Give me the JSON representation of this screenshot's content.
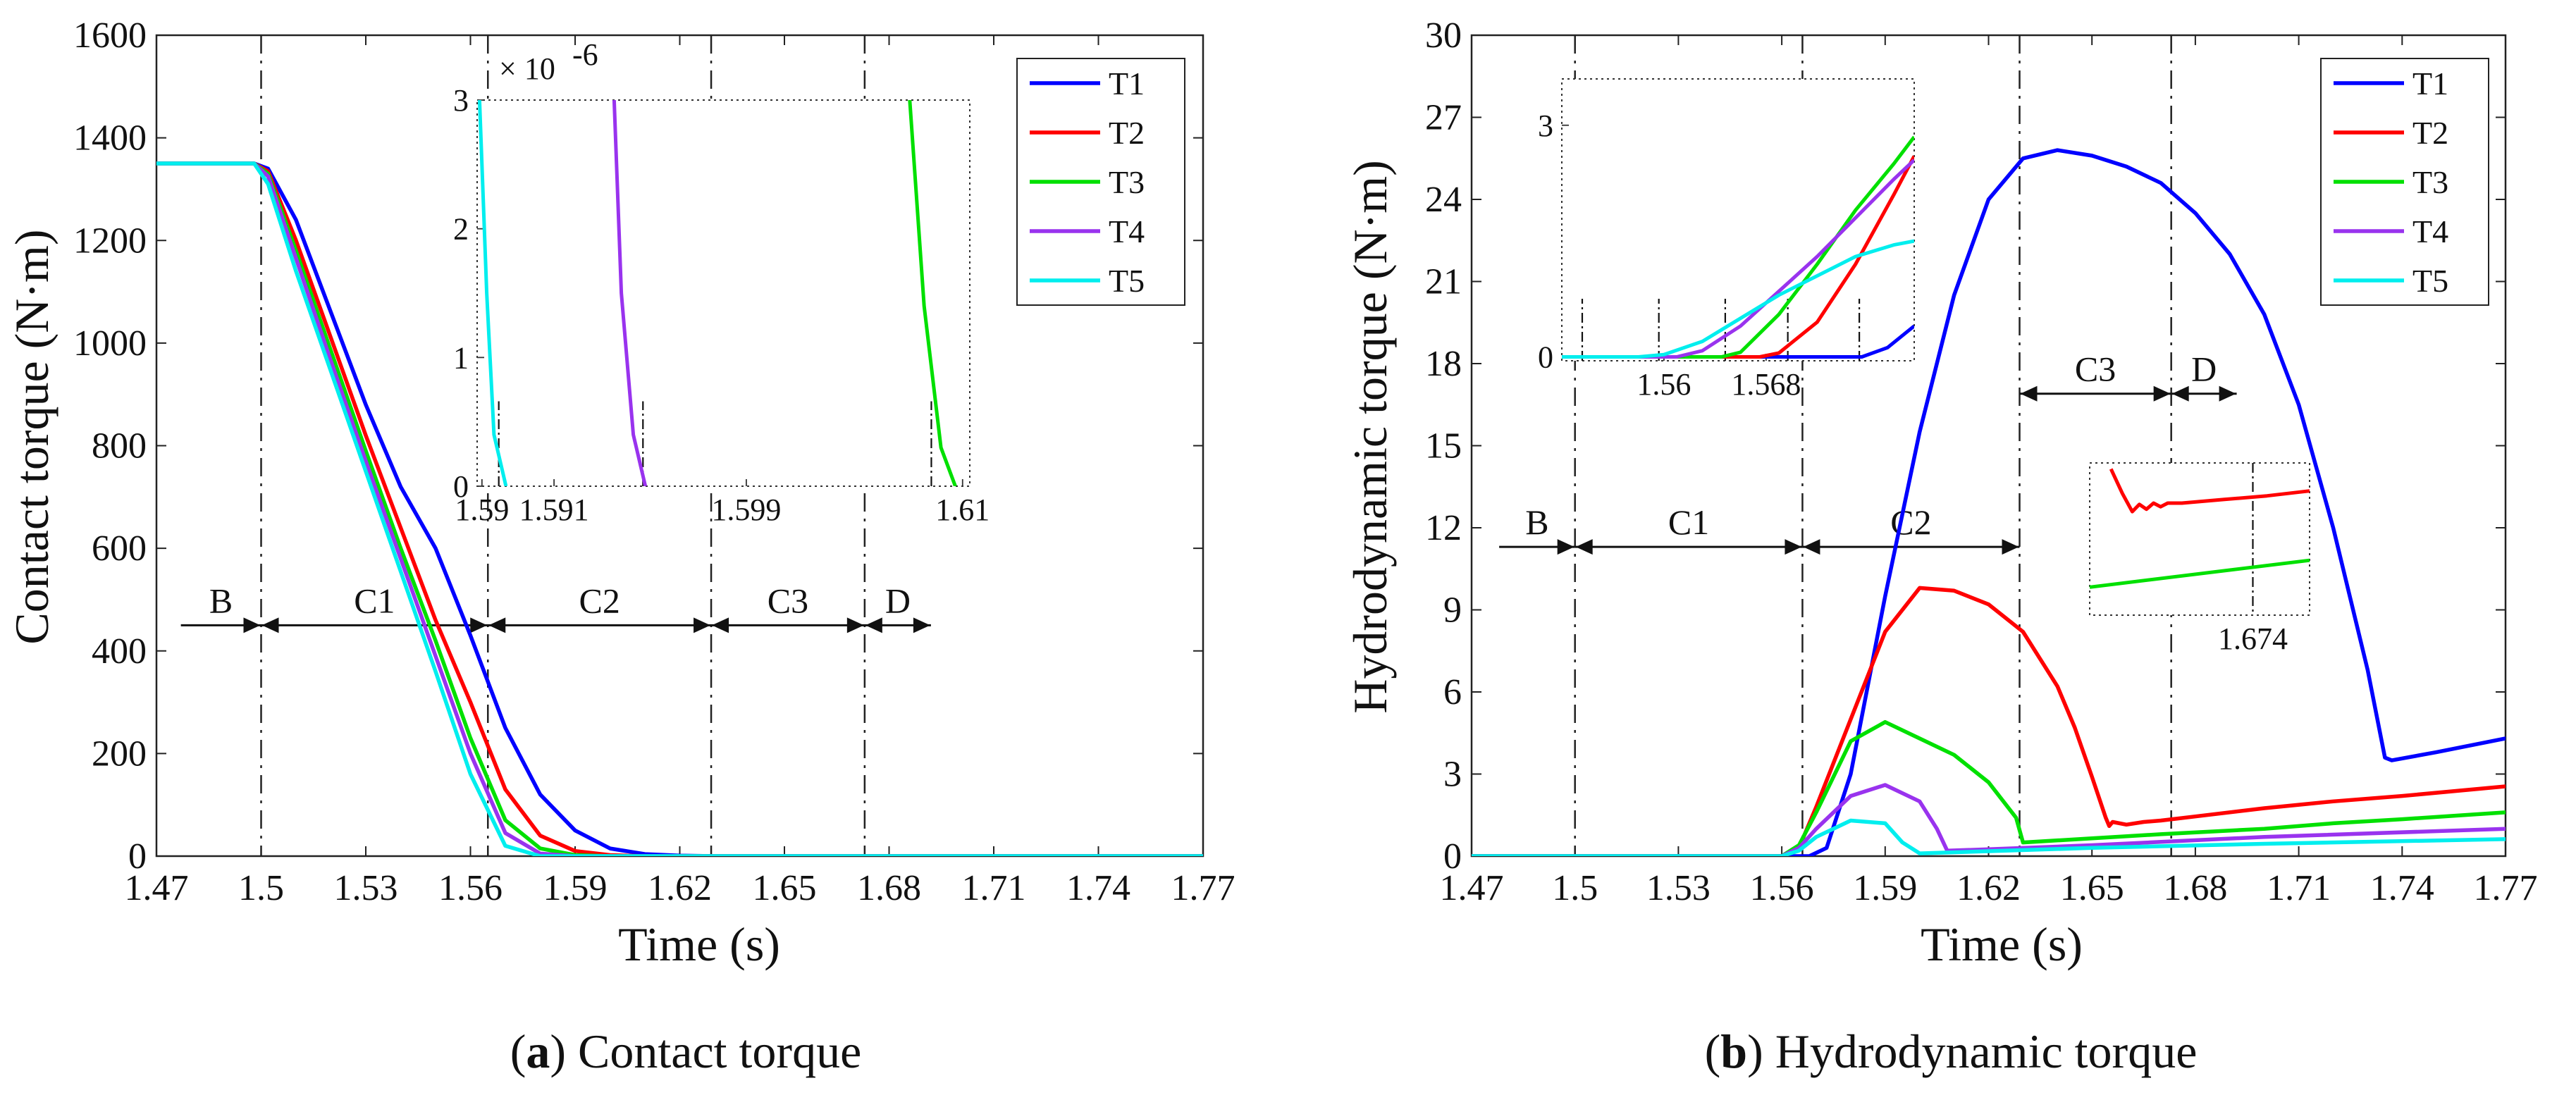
{
  "colors": {
    "T1": "#0000ff",
    "T2": "#ff0000",
    "T3": "#00e000",
    "T4": "#9933ee",
    "T5": "#00eeee",
    "axis": "#222222"
  },
  "chart_data": [
    {
      "type": "line",
      "title": "",
      "xlabel": "Time (s)",
      "ylabel": "Contact torque (N·m)",
      "xlim": [
        1.47,
        1.77
      ],
      "ylim": [
        0,
        1600
      ],
      "xticks": [
        1.47,
        1.5,
        1.53,
        1.56,
        1.59,
        1.62,
        1.65,
        1.68,
        1.71,
        1.74,
        1.77
      ],
      "yticks": [
        0,
        200,
        400,
        600,
        800,
        1000,
        1200,
        1400,
        1600
      ],
      "xtick_labels": [
        "1.47",
        "1.5",
        "1.53",
        "1.56",
        "1.59",
        "1.62",
        "1.65",
        "1.68",
        "1.71",
        "1.74",
        "1.77"
      ],
      "ytick_labels": [
        "0",
        "200",
        "400",
        "600",
        "800",
        "1000",
        "1200",
        "1400",
        "1600"
      ],
      "legend": [
        "T1",
        "T2",
        "T3",
        "T4",
        "T5"
      ],
      "legend_position": "top-right",
      "series": [
        {
          "name": "T1",
          "x": [
            1.47,
            1.498,
            1.502,
            1.51,
            1.52,
            1.53,
            1.54,
            1.55,
            1.56,
            1.57,
            1.58,
            1.59,
            1.6,
            1.61,
            1.62,
            1.63,
            1.77
          ],
          "y": [
            1350,
            1350,
            1340,
            1240,
            1060,
            880,
            720,
            600,
            430,
            250,
            120,
            50,
            15,
            4,
            1,
            0,
            0
          ]
        },
        {
          "name": "T2",
          "x": [
            1.47,
            1.498,
            1.502,
            1.51,
            1.52,
            1.53,
            1.54,
            1.55,
            1.56,
            1.57,
            1.58,
            1.59,
            1.6,
            1.61,
            1.77
          ],
          "y": [
            1350,
            1350,
            1335,
            1200,
            1010,
            820,
            640,
            460,
            300,
            130,
            40,
            10,
            2,
            0,
            0
          ]
        },
        {
          "name": "T3",
          "x": [
            1.47,
            1.498,
            1.502,
            1.51,
            1.52,
            1.53,
            1.54,
            1.55,
            1.56,
            1.57,
            1.58,
            1.59,
            1.6,
            1.77
          ],
          "y": [
            1350,
            1350,
            1330,
            1180,
            985,
            790,
            600,
            420,
            230,
            70,
            15,
            2,
            0,
            0
          ]
        },
        {
          "name": "T4",
          "x": [
            1.47,
            1.498,
            1.502,
            1.51,
            1.52,
            1.53,
            1.54,
            1.55,
            1.56,
            1.57,
            1.58,
            1.59,
            1.77
          ],
          "y": [
            1350,
            1350,
            1325,
            1165,
            965,
            770,
            580,
            390,
            200,
            45,
            5,
            0,
            0
          ]
        },
        {
          "name": "T5",
          "x": [
            1.47,
            1.498,
            1.502,
            1.51,
            1.52,
            1.53,
            1.54,
            1.55,
            1.56,
            1.57,
            1.58,
            1.77
          ],
          "y": [
            1350,
            1350,
            1310,
            1140,
            945,
            750,
            555,
            360,
            160,
            20,
            0,
            0
          ]
        }
      ],
      "phase_lines_x": [
        1.5,
        1.565,
        1.629,
        1.673
      ],
      "phase_labels": [
        {
          "label": "B",
          "x_from": 1.477,
          "x_to": 1.5
        },
        {
          "label": "C1",
          "x_from": 1.5,
          "x_to": 1.565
        },
        {
          "label": "C2",
          "x_from": 1.565,
          "x_to": 1.629
        },
        {
          "label": "C3",
          "x_from": 1.629,
          "x_to": 1.673
        },
        {
          "label": "D",
          "x_from": 1.673,
          "x_to": 1.692
        }
      ],
      "phase_arrow_y": 450,
      "inset": {
        "xlim": [
          1.5898,
          1.6103
        ],
        "ylim": [
          0,
          3e-06
        ],
        "y_multiplier": "× 10",
        "y_exponent": "-6",
        "xtick_labels": [
          {
            "x": 1.59,
            "label": "1.59"
          },
          {
            "x": 1.593,
            "label": "1.591"
          },
          {
            "x": 1.601,
            "label": "1.599"
          },
          {
            "x": 1.61,
            "label": "1.61"
          }
        ],
        "ytick_labels": [
          {
            "y": 0,
            "label": "0"
          },
          {
            "y": 1e-06,
            "label": "1"
          },
          {
            "y": 2e-06,
            "label": "2"
          },
          {
            "y": 3e-06,
            "label": "3"
          }
        ],
        "series": [
          {
            "name": "T5",
            "x": [
              1.5899,
              1.5902,
              1.5905,
              1.591
            ],
            "y": [
              3e-06,
              1.5e-06,
              4e-07,
              0
            ]
          },
          {
            "name": "T4",
            "x": [
              1.5955,
              1.5958,
              1.5963,
              1.5968
            ],
            "y": [
              3e-06,
              1.5e-06,
              4e-07,
              0
            ]
          },
          {
            "name": "T3",
            "x": [
              1.6078,
              1.6084,
              1.6091,
              1.6097
            ],
            "y": [
              3e-06,
              1.4e-06,
              3e-07,
              0
            ]
          }
        ],
        "marker_lines_x": [
          1.5907,
          1.5967,
          1.6087
        ]
      },
      "caption_letter": "a",
      "caption_text": " Contact torque"
    },
    {
      "type": "line",
      "title": "",
      "xlabel": "Time (s)",
      "ylabel": "Hydrodynamic torque (N·m)",
      "xlim": [
        1.47,
        1.77
      ],
      "ylim": [
        0,
        30
      ],
      "xticks": [
        1.47,
        1.5,
        1.53,
        1.56,
        1.59,
        1.62,
        1.65,
        1.68,
        1.71,
        1.74,
        1.77
      ],
      "yticks": [
        0,
        3,
        6,
        9,
        12,
        15,
        18,
        21,
        24,
        27,
        30
      ],
      "xtick_labels": [
        "1.47",
        "1.5",
        "1.53",
        "1.56",
        "1.59",
        "1.62",
        "1.65",
        "1.68",
        "1.71",
        "1.74",
        "1.77"
      ],
      "ytick_labels": [
        "0",
        "3",
        "6",
        "9",
        "12",
        "15",
        "18",
        "21",
        "24",
        "27",
        "30"
      ],
      "legend": [
        "T1",
        "T2",
        "T3",
        "T4",
        "T5"
      ],
      "legend_position": "top-right",
      "series": [
        {
          "name": "T1",
          "x": [
            1.47,
            1.568,
            1.573,
            1.58,
            1.59,
            1.6,
            1.61,
            1.62,
            1.63,
            1.64,
            1.65,
            1.66,
            1.67,
            1.68,
            1.69,
            1.7,
            1.71,
            1.72,
            1.73,
            1.735,
            1.737,
            1.75,
            1.77
          ],
          "y": [
            0,
            0,
            0.3,
            3,
            9.5,
            15.5,
            20.5,
            24,
            25.5,
            25.8,
            25.6,
            25.2,
            24.6,
            23.5,
            22,
            19.8,
            16.5,
            12,
            6.8,
            3.6,
            3.5,
            3.8,
            4.3
          ]
        },
        {
          "name": "T2",
          "x": [
            1.47,
            1.56,
            1.565,
            1.57,
            1.58,
            1.59,
            1.6,
            1.61,
            1.62,
            1.63,
            1.64,
            1.645,
            1.65,
            1.654,
            1.655,
            1.656,
            1.66,
            1.665,
            1.67,
            1.68,
            1.7,
            1.72,
            1.74,
            1.77
          ],
          "y": [
            0,
            0,
            0.3,
            1.8,
            5,
            8.2,
            9.8,
            9.7,
            9.2,
            8.2,
            6.2,
            4.7,
            2.9,
            1.4,
            1.1,
            1.25,
            1.15,
            1.25,
            1.3,
            1.45,
            1.75,
            2.0,
            2.2,
            2.55
          ]
        },
        {
          "name": "T3",
          "x": [
            1.47,
            1.56,
            1.565,
            1.57,
            1.58,
            1.59,
            1.6,
            1.61,
            1.62,
            1.628,
            1.63,
            1.65,
            1.67,
            1.7,
            1.72,
            1.74,
            1.77
          ],
          "y": [
            0,
            0,
            0.4,
            1.6,
            4.2,
            4.9,
            4.3,
            3.7,
            2.7,
            1.4,
            0.5,
            0.65,
            0.8,
            1.0,
            1.2,
            1.35,
            1.6
          ]
        },
        {
          "name": "T4",
          "x": [
            1.47,
            1.56,
            1.565,
            1.57,
            1.58,
            1.59,
            1.6,
            1.605,
            1.608,
            1.62,
            1.65,
            1.7,
            1.77
          ],
          "y": [
            0,
            0,
            0.3,
            1.0,
            2.2,
            2.6,
            2.0,
            1.0,
            0.2,
            0.25,
            0.4,
            0.7,
            1.0
          ]
        },
        {
          "name": "T5",
          "x": [
            1.47,
            1.56,
            1.565,
            1.57,
            1.58,
            1.59,
            1.595,
            1.6,
            1.62,
            1.65,
            1.7,
            1.77
          ],
          "y": [
            0,
            0,
            0.2,
            0.7,
            1.3,
            1.2,
            0.5,
            0.1,
            0.18,
            0.3,
            0.45,
            0.62
          ]
        }
      ],
      "phase_lines_x": [
        1.5,
        1.566,
        1.629,
        1.673
      ],
      "phase_labels": [
        {
          "label": "B",
          "x_from": 1.478,
          "x_to": 1.5
        },
        {
          "label": "C1",
          "x_from": 1.5,
          "x_to": 1.566
        },
        {
          "label": "C2",
          "x_from": 1.566,
          "x_to": 1.629
        },
        {
          "label": "C3",
          "x_from": 1.629,
          "x_to": 1.673
        },
        {
          "label": "D",
          "x_from": 1.673,
          "x_to": 1.692
        }
      ],
      "phase_arrow_y": [
        11.3,
        11.3,
        11.3,
        16.9,
        16.9
      ],
      "inset": {
        "xlim": [
          1.552,
          1.5796
        ],
        "ylim": [
          -0.05,
          3.6
        ],
        "xtick_labels": [
          {
            "x": 1.56,
            "label": "1.56"
          },
          {
            "x": 1.568,
            "label": "1.568"
          }
        ],
        "ytick_labels": [
          {
            "y": 0,
            "label": "0"
          },
          {
            "y": 3,
            "label": "3"
          }
        ],
        "series": [
          {
            "name": "T1",
            "x": [
              1.552,
              1.5755,
              1.5775,
              1.5796
            ],
            "y": [
              0,
              0,
              0.12,
              0.4
            ]
          },
          {
            "name": "T2",
            "x": [
              1.552,
              1.5675,
              1.569,
              1.572,
              1.575,
              1.578,
              1.5796
            ],
            "y": [
              0,
              0,
              0.05,
              0.45,
              1.2,
              2.1,
              2.6
            ]
          },
          {
            "name": "T3",
            "x": [
              1.552,
              1.5645,
              1.566,
              1.569,
              1.572,
              1.575,
              1.578,
              1.5796
            ],
            "y": [
              0,
              0,
              0.06,
              0.55,
              1.2,
              1.9,
              2.5,
              2.85
            ]
          },
          {
            "name": "T4",
            "x": [
              1.552,
              1.561,
              1.563,
              1.566,
              1.569,
              1.572,
              1.575,
              1.578,
              1.5796
            ],
            "y": [
              0,
              0,
              0.08,
              0.4,
              0.85,
              1.3,
              1.8,
              2.3,
              2.55
            ]
          },
          {
            "name": "T5",
            "x": [
              1.552,
              1.558,
              1.56,
              1.563,
              1.566,
              1.569,
              1.572,
              1.575,
              1.578,
              1.5796
            ],
            "y": [
              0,
              0,
              0.03,
              0.2,
              0.5,
              0.8,
              1.05,
              1.3,
              1.45,
              1.5
            ]
          }
        ],
        "marker_lines_x": [
          1.5536,
          1.5596,
          1.5648,
          1.5697,
          1.5753
        ],
        "inset2": {
          "x_range": [
            1.6625,
            1.678
          ],
          "xtick_labels": [
            {
              "x": 1.674,
              "label": "1.674"
            }
          ],
          "series": [
            {
              "name": "T2",
              "x": [
                1.664,
                1.6648,
                1.6655,
                1.666,
                1.6665,
                1.667,
                1.6675,
                1.668,
                1.669,
                1.672,
                1.675,
                1.678
              ],
              "y": [
                1.55,
                1.35,
                1.2,
                1.26,
                1.22,
                1.27,
                1.24,
                1.27,
                1.27,
                1.3,
                1.33,
                1.37
              ]
            },
            {
              "name": "T3",
              "x": [
                1.6625,
                1.678
              ],
              "y": [
                0.58,
                0.8
              ]
            }
          ],
          "marker_lines_x": [
            1.674
          ]
        }
      },
      "caption_letter": "b",
      "caption_text": " Hydrodynamic torque"
    }
  ]
}
